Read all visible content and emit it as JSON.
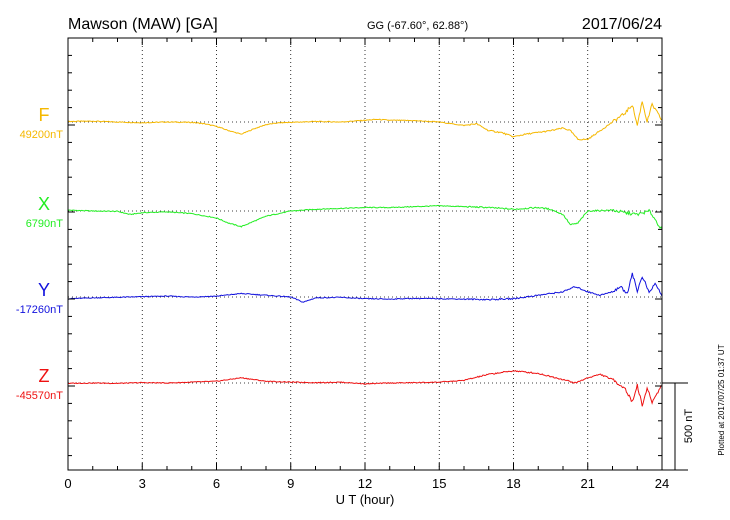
{
  "chart_data": {
    "type": "line",
    "title": "Mawson (MAW)  [GA]",
    "coords": "GG (-67.60°,  62.88°)",
    "date": "2017/06/24",
    "xlabel": "U T (hour)",
    "x_ticks": [
      "0",
      "3",
      "6",
      "9",
      "12",
      "15",
      "18",
      "21",
      "24"
    ],
    "xlim": [
      0,
      24
    ],
    "scale_label": "500 nT",
    "plotted_note": "Plotted at 2017/07/25 01:37 UT",
    "series": [
      {
        "name": "F",
        "baseline_label": "49200nT",
        "color": "#f5b800",
        "baseline": 49200,
        "points": [
          [
            0,
            49203
          ],
          [
            1,
            49205
          ],
          [
            2,
            49200
          ],
          [
            3,
            49196
          ],
          [
            4,
            49200
          ],
          [
            5,
            49198
          ],
          [
            5.5,
            49190
          ],
          [
            6,
            49175
          ],
          [
            6.5,
            49150
          ],
          [
            7,
            49130
          ],
          [
            7.5,
            49160
          ],
          [
            8,
            49185
          ],
          [
            8.5,
            49195
          ],
          [
            9,
            49198
          ],
          [
            10,
            49203
          ],
          [
            11,
            49200
          ],
          [
            12,
            49210
          ],
          [
            12.5,
            49215
          ],
          [
            13,
            49210
          ],
          [
            14,
            49208
          ],
          [
            15,
            49200
          ],
          [
            15.5,
            49190
          ],
          [
            16,
            49180
          ],
          [
            16.5,
            49190
          ],
          [
            17,
            49150
          ],
          [
            17.5,
            49140
          ],
          [
            18,
            49115
          ],
          [
            18.5,
            49130
          ],
          [
            19,
            49140
          ],
          [
            19.5,
            49150
          ],
          [
            20,
            49165
          ],
          [
            20.3,
            49150
          ],
          [
            20.6,
            49100
          ],
          [
            21,
            49100
          ],
          [
            21.5,
            49150
          ],
          [
            22,
            49200
          ],
          [
            22.5,
            49250
          ],
          [
            22.8,
            49300
          ],
          [
            23,
            49180
          ],
          [
            23.2,
            49320
          ],
          [
            23.4,
            49200
          ],
          [
            23.6,
            49300
          ],
          [
            24,
            49210
          ]
        ]
      },
      {
        "name": "X",
        "baseline_label": "6790nT",
        "color": "#22ee22",
        "baseline": 6790,
        "points": [
          [
            0,
            6795
          ],
          [
            1,
            6790
          ],
          [
            2,
            6788
          ],
          [
            2.5,
            6770
          ],
          [
            3,
            6780
          ],
          [
            4,
            6785
          ],
          [
            5,
            6775
          ],
          [
            6,
            6750
          ],
          [
            6.5,
            6720
          ],
          [
            7,
            6700
          ],
          [
            7.5,
            6730
          ],
          [
            8,
            6760
          ],
          [
            9,
            6790
          ],
          [
            10,
            6800
          ],
          [
            11,
            6805
          ],
          [
            12,
            6810
          ],
          [
            13,
            6810
          ],
          [
            14,
            6815
          ],
          [
            15,
            6820
          ],
          [
            16,
            6815
          ],
          [
            17,
            6810
          ],
          [
            18,
            6800
          ],
          [
            19,
            6810
          ],
          [
            19.5,
            6800
          ],
          [
            20,
            6770
          ],
          [
            20.3,
            6710
          ],
          [
            20.6,
            6720
          ],
          [
            21,
            6790
          ],
          [
            22,
            6795
          ],
          [
            22.5,
            6780
          ],
          [
            23,
            6770
          ],
          [
            23.5,
            6790
          ],
          [
            24,
            6680
          ]
        ]
      },
      {
        "name": "Y",
        "baseline_label": "-17260nT",
        "color": "#1111dd",
        "baseline": -17260,
        "points": [
          [
            0,
            -17270
          ],
          [
            1,
            -17265
          ],
          [
            2,
            -17262
          ],
          [
            3,
            -17258
          ],
          [
            4,
            -17255
          ],
          [
            5,
            -17260
          ],
          [
            6,
            -17255
          ],
          [
            7,
            -17240
          ],
          [
            8,
            -17250
          ],
          [
            9,
            -17260
          ],
          [
            9.5,
            -17290
          ],
          [
            10,
            -17265
          ],
          [
            11,
            -17262
          ],
          [
            12,
            -17270
          ],
          [
            13,
            -17272
          ],
          [
            14,
            -17268
          ],
          [
            15,
            -17270
          ],
          [
            16,
            -17272
          ],
          [
            17,
            -17275
          ],
          [
            18,
            -17270
          ],
          [
            19,
            -17250
          ],
          [
            20,
            -17230
          ],
          [
            20.5,
            -17200
          ],
          [
            21,
            -17230
          ],
          [
            21.5,
            -17250
          ],
          [
            22,
            -17230
          ],
          [
            22.3,
            -17200
          ],
          [
            22.6,
            -17240
          ],
          [
            22.8,
            -17120
          ],
          [
            23,
            -17230
          ],
          [
            23.2,
            -17140
          ],
          [
            23.5,
            -17240
          ],
          [
            23.7,
            -17180
          ],
          [
            24,
            -17250
          ]
        ]
      },
      {
        "name": "Z",
        "baseline_label": "-45570nT",
        "color": "#ee1111",
        "baseline": -45570,
        "points": [
          [
            0,
            -45572
          ],
          [
            1,
            -45570
          ],
          [
            2,
            -45572
          ],
          [
            3,
            -45568
          ],
          [
            4,
            -45570
          ],
          [
            5,
            -45565
          ],
          [
            6,
            -45560
          ],
          [
            7,
            -45540
          ],
          [
            8,
            -45560
          ],
          [
            9,
            -45565
          ],
          [
            10,
            -45568
          ],
          [
            11,
            -45565
          ],
          [
            12,
            -45575
          ],
          [
            13,
            -45570
          ],
          [
            14,
            -45568
          ],
          [
            15,
            -45565
          ],
          [
            16,
            -45555
          ],
          [
            17,
            -45520
          ],
          [
            18,
            -45500
          ],
          [
            19,
            -45515
          ],
          [
            20,
            -45550
          ],
          [
            20.5,
            -45570
          ],
          [
            21,
            -45540
          ],
          [
            21.5,
            -45520
          ],
          [
            22,
            -45550
          ],
          [
            22.5,
            -45600
          ],
          [
            22.8,
            -45680
          ],
          [
            23,
            -45580
          ],
          [
            23.2,
            -45700
          ],
          [
            23.4,
            -45600
          ],
          [
            23.6,
            -45680
          ],
          [
            24,
            -45580
          ]
        ]
      }
    ]
  }
}
